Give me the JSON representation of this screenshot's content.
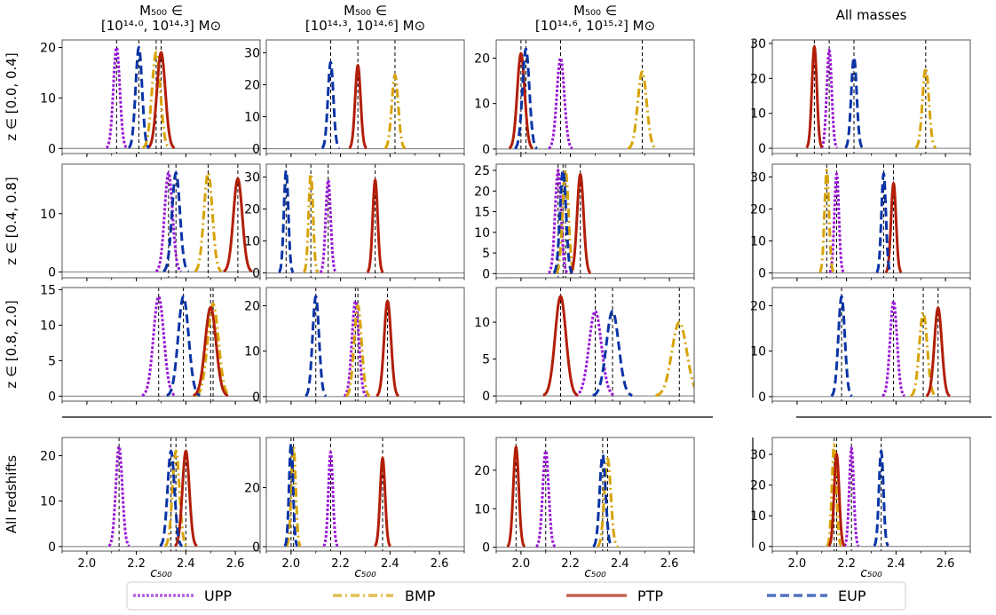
{
  "column_headers": [
    {
      "line1": "M₅₀₀ ∈",
      "line2": "[10¹⁴·⁰, 10¹⁴·³] M⊙"
    },
    {
      "line1": "M₅₀₀ ∈",
      "line2": "[10¹⁴·³, 10¹⁴·⁶] M⊙"
    },
    {
      "line1": "M₅₀₀ ∈",
      "line2": "[10¹⁴·⁶, 10¹⁵·²] M⊙"
    },
    {
      "line1": "All masses",
      "line2": ""
    }
  ],
  "row_labels": [
    "z ∈ [0.0, 0.4]",
    "z ∈ [0.4, 0.8]",
    "z ∈ [0.8, 2.0]",
    "All redshifts"
  ],
  "xlabel": "c₅₀₀",
  "x_ticks": [
    "2.0",
    "2.2",
    "2.4",
    "2.6"
  ],
  "legend": [
    {
      "name": "UPP",
      "color": "#9a19d6",
      "dash": "dotted"
    },
    {
      "name": "BMP",
      "color": "#d8a308",
      "dash": "dashdot"
    },
    {
      "name": "PTP",
      "color": "#b21e08",
      "dash": "solid"
    },
    {
      "name": "EUP",
      "color": "#0a34a6",
      "dash": "dashed"
    }
  ],
  "chart_data": {
    "type": "line",
    "description_of_panels": "4x4 grid of Gaussian posterior distributions of c500 per profile model",
    "xlim": [
      1.9,
      2.7
    ],
    "series_order": [
      "UPP",
      "BMP",
      "PTP",
      "EUP"
    ],
    "panels": [
      [
        {
          "row": 0,
          "col": 0,
          "ylim": [
            -1,
            21.5
          ],
          "yticks": [
            0,
            10,
            20
          ],
          "peaks": {
            "UPP": [
              2.12,
              20,
              0.013
            ],
            "BMP": [
              2.28,
              19,
              0.017
            ],
            "PTP": [
              2.3,
              19,
              0.017
            ],
            "EUP": [
              2.21,
              20,
              0.013
            ]
          }
        },
        {
          "row": 0,
          "col": 1,
          "ylim": [
            -1.5,
            34
          ],
          "yticks": [
            0,
            10,
            20,
            30
          ],
          "peaks": {
            "UPP": null,
            "BMP": [
              2.42,
              23,
              0.013
            ],
            "PTP": [
              2.27,
              26,
              0.011
            ],
            "EUP": [
              2.16,
              27,
              0.011
            ]
          }
        },
        {
          "row": 0,
          "col": 2,
          "ylim": [
            -1,
            24
          ],
          "yticks": [
            0,
            10,
            20
          ],
          "peaks": {
            "UPP": [
              2.16,
              20,
              0.015
            ],
            "BMP": [
              2.49,
              17,
              0.018
            ],
            "PTP": [
              2.0,
              21,
              0.015
            ],
            "EUP": [
              2.02,
              22,
              0.014
            ]
          }
        },
        {
          "row": 0,
          "col": 3,
          "ylim": [
            -1.5,
            31
          ],
          "yticks": [
            0,
            10,
            20,
            30
          ],
          "peaks": {
            "UPP": [
              2.13,
              28,
              0.01
            ],
            "BMP": [
              2.52,
              23,
              0.013
            ],
            "PTP": [
              2.07,
              29,
              0.01
            ],
            "EUP": [
              2.23,
              26,
              0.011
            ]
          }
        }
      ],
      [
        {
          "row": 1,
          "col": 0,
          "ylim": [
            -1,
            18.5
          ],
          "yticks": [
            0,
            10
          ],
          "peaks": {
            "UPP": [
              2.33,
              17,
              0.016
            ],
            "BMP": [
              2.49,
              17,
              0.017
            ],
            "PTP": [
              2.61,
              16,
              0.018
            ],
            "EUP": [
              2.36,
              17,
              0.016
            ]
          }
        },
        {
          "row": 1,
          "col": 1,
          "ylim": [
            -1.5,
            34
          ],
          "yticks": [
            0,
            10,
            20,
            30
          ],
          "peaks": {
            "UPP": [
              2.15,
              29,
              0.01
            ],
            "BMP": [
              2.08,
              31,
              0.009
            ],
            "PTP": [
              2.34,
              29,
              0.01
            ],
            "EUP": [
              1.98,
              32,
              0.009
            ]
          }
        },
        {
          "row": 1,
          "col": 2,
          "ylim": [
            -1,
            26.5
          ],
          "yticks": [
            0,
            5,
            10,
            15,
            20,
            25
          ],
          "peaks": {
            "UPP": [
              2.15,
              25,
              0.012
            ],
            "BMP": [
              2.18,
              25,
              0.012
            ],
            "PTP": [
              2.24,
              24,
              0.013
            ],
            "EUP": [
              2.17,
              25,
              0.012
            ]
          }
        },
        {
          "row": 1,
          "col": 3,
          "ylim": [
            -1.5,
            34
          ],
          "yticks": [
            0,
            10,
            20,
            30
          ],
          "peaks": {
            "UPP": [
              2.16,
              31,
              0.009
            ],
            "BMP": [
              2.12,
              32,
              0.009
            ],
            "PTP": [
              2.39,
              28,
              0.01
            ],
            "EUP": [
              2.35,
              31,
              0.009
            ]
          }
        }
      ],
      [
        {
          "row": 2,
          "col": 0,
          "ylim": [
            -0.7,
            15.3
          ],
          "yticks": [
            0,
            5,
            10,
            15
          ],
          "peaks": {
            "UPP": [
              2.29,
              14,
              0.021
            ],
            "BMP": [
              2.51,
              13,
              0.022
            ],
            "PTP": [
              2.5,
              12.5,
              0.022
            ],
            "EUP": [
              2.39,
              14,
              0.021
            ]
          }
        },
        {
          "row": 2,
          "col": 1,
          "ylim": [
            -1,
            24
          ],
          "yticks": [
            0,
            10,
            20
          ],
          "peaks": {
            "UPP": [
              2.26,
              21,
              0.014
            ],
            "BMP": [
              2.27,
              20,
              0.015
            ],
            "PTP": [
              2.39,
              21,
              0.014
            ],
            "EUP": [
              2.1,
              22,
              0.013
            ]
          }
        },
        {
          "row": 2,
          "col": 2,
          "ylim": [
            -0.7,
            14.7
          ],
          "yticks": [
            0,
            5,
            10
          ],
          "peaks": {
            "UPP": [
              2.3,
              11.5,
              0.025
            ],
            "BMP": [
              2.64,
              10,
              0.03
            ],
            "PTP": [
              2.16,
              13.5,
              0.022
            ],
            "EUP": [
              2.37,
              11.5,
              0.025
            ]
          }
        },
        {
          "row": 2,
          "col": 3,
          "ylim": [
            -1,
            24
          ],
          "yticks": [
            0,
            10,
            20
          ],
          "peaks": {
            "UPP": [
              2.39,
              21,
              0.014
            ],
            "BMP": [
              2.51,
              18.5,
              0.016
            ],
            "PTP": [
              2.57,
              19.5,
              0.015
            ],
            "EUP": [
              2.18,
              22,
              0.013
            ]
          }
        }
      ],
      [
        {
          "row": 3,
          "col": 0,
          "ylim": [
            -1,
            24
          ],
          "yticks": [
            0,
            10,
            20
          ],
          "peaks": {
            "UPP": [
              2.13,
              22,
              0.013
            ],
            "BMP": [
              2.36,
              21,
              0.014
            ],
            "PTP": [
              2.4,
              21,
              0.014
            ],
            "EUP": [
              2.34,
              21,
              0.014
            ]
          }
        },
        {
          "row": 3,
          "col": 1,
          "ylim": [
            -1.5,
            37
          ],
          "yticks": [
            0,
            20
          ],
          "peaks": {
            "UPP": [
              2.16,
              32,
              0.009
            ],
            "BMP": [
              2.01,
              34,
              0.009
            ],
            "PTP": [
              2.37,
              30,
              0.01
            ],
            "EUP": [
              2.0,
              35,
              0.008
            ]
          }
        },
        {
          "row": 3,
          "col": 2,
          "ylim": [
            -1,
            28.5
          ],
          "yticks": [
            0,
            10,
            20
          ],
          "peaks": {
            "UPP": [
              2.1,
              25,
              0.012
            ],
            "BMP": [
              2.35,
              23,
              0.013
            ],
            "PTP": [
              1.98,
              26,
              0.011
            ],
            "EUP": [
              2.33,
              24,
              0.012
            ]
          }
        },
        {
          "row": 3,
          "col": 3,
          "ylim": [
            -1.5,
            35.5
          ],
          "yticks": [
            0,
            10,
            20,
            30
          ],
          "peaks": {
            "UPP": [
              2.22,
              32,
              0.009
            ],
            "BMP": [
              2.15,
              33,
              0.009
            ],
            "PTP": [
              2.16,
              30,
              0.01
            ],
            "EUP": [
              2.34,
              31,
              0.009
            ]
          }
        }
      ]
    ]
  }
}
